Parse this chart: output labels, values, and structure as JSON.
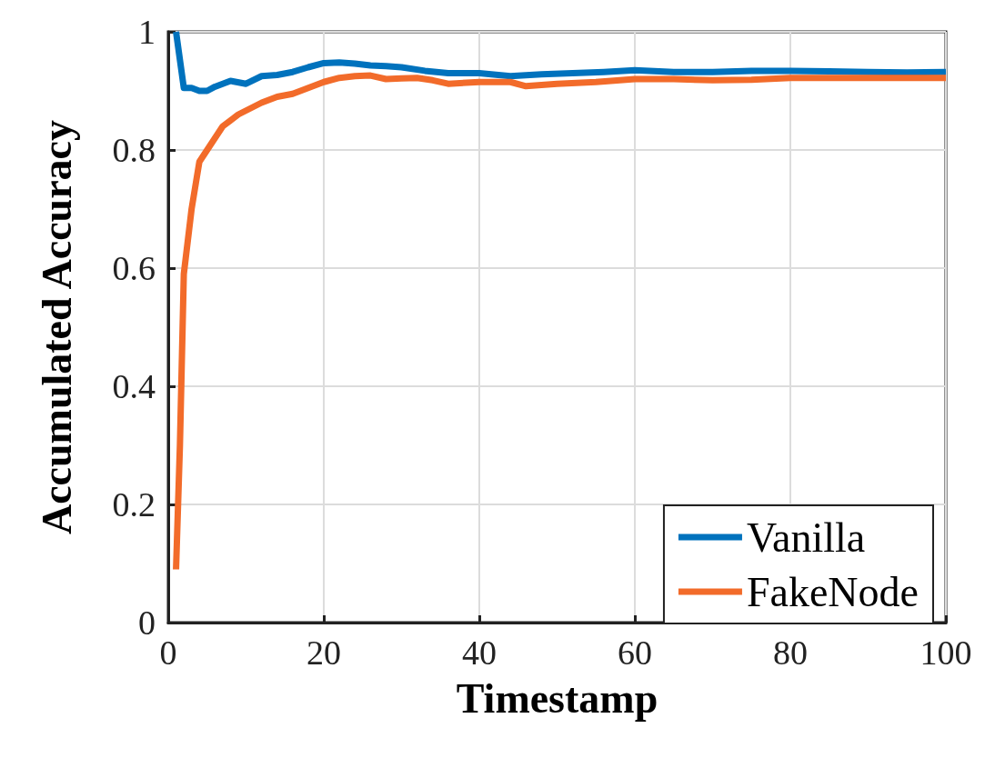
{
  "chart_data": {
    "type": "line",
    "xlabel": "Timestamp",
    "ylabel": "Accumulated Accuracy",
    "xlim": [
      0,
      100
    ],
    "xticks": [
      0,
      20,
      40,
      60,
      80,
      100
    ],
    "ylim": [
      0,
      1
    ],
    "yticks": [
      0,
      0.2,
      0.4,
      0.6,
      0.8,
      1
    ],
    "grid": true,
    "legend": "bottom right",
    "marker": "none",
    "line_style": "solid",
    "series": [
      {
        "name": "Vanilla",
        "color": "#0072bd",
        "x": [
          1,
          2,
          3,
          4,
          5,
          6,
          8,
          10,
          12,
          14,
          16,
          18,
          20,
          22,
          24,
          26,
          28,
          30,
          33,
          36,
          40,
          44,
          48,
          52,
          56,
          60,
          65,
          70,
          75,
          80,
          85,
          90,
          95,
          100
        ],
        "values": [
          1,
          0.905,
          0.905,
          0.9,
          0.9,
          0.907,
          0.917,
          0.912,
          0.925,
          0.927,
          0.932,
          0.94,
          0.947,
          0.948,
          0.946,
          0.943,
          0.942,
          0.94,
          0.934,
          0.93,
          0.93,
          0.925,
          0.928,
          0.93,
          0.932,
          0.935,
          0.932,
          0.932,
          0.934,
          0.934,
          0.933,
          0.932,
          0.931,
          0.932
        ]
      },
      {
        "name": "FakeNode",
        "color": "#f26b2a",
        "x": [
          1,
          1.5,
          2,
          3,
          4,
          5,
          7,
          9,
          12,
          14,
          16,
          18,
          20,
          22,
          24,
          26,
          28,
          30,
          32,
          34,
          36,
          40,
          44,
          46,
          50,
          55,
          60,
          65,
          70,
          75,
          80,
          85,
          90,
          95,
          100
        ],
        "values": [
          0.09,
          0.3,
          0.59,
          0.7,
          0.78,
          0.8,
          0.84,
          0.86,
          0.88,
          0.89,
          0.895,
          0.905,
          0.915,
          0.922,
          0.925,
          0.926,
          0.92,
          0.921,
          0.922,
          0.918,
          0.912,
          0.915,
          0.915,
          0.908,
          0.912,
          0.915,
          0.92,
          0.92,
          0.918,
          0.919,
          0.922,
          0.922,
          0.922,
          0.922,
          0.922
        ]
      }
    ]
  }
}
